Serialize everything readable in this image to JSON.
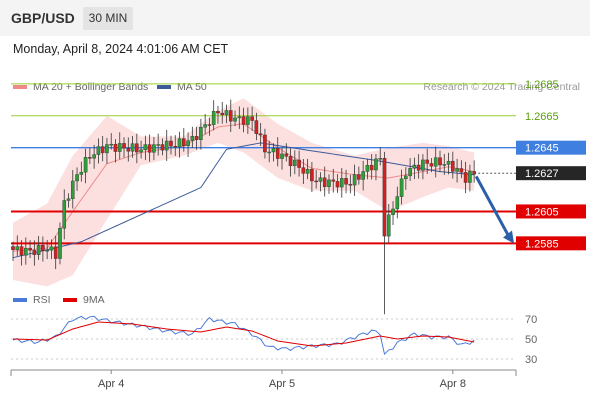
{
  "header": {
    "symbol": "GBP/USD",
    "timeframe": "30 MIN"
  },
  "datetime": "Monday, April 8, 2024 4:01:06 AM CET",
  "legend": {
    "bb_label": "MA 20 + Bollinger Bands",
    "ma50_label": "MA 50",
    "rsi_label": "RSI",
    "rsi_ma_label": "9MA"
  },
  "credit": "Research © 2024 Trading Central",
  "colors": {
    "bb": "#f08a8a",
    "bb_fill": "#fbdada",
    "ma50": "#3b5b9a",
    "resistance": "#9acd32",
    "support": "#e00000",
    "pivot": "#3f7fe0",
    "last": "#262626",
    "arrow": "#2d5fa8",
    "rsi": "#4a7ad8",
    "rsi_ma": "#e00000"
  },
  "chart_data": [
    {
      "type": "candlestick",
      "title": "GBP/USD",
      "xlabel": "",
      "ylabel": "",
      "x_ticks": [
        "Apr 4",
        "Apr 5",
        "Apr 8"
      ],
      "ylim": [
        1.2562,
        1.27
      ],
      "last_price": "1.2627",
      "levels": [
        {
          "value": 1.2685,
          "label": "1.2685",
          "kind": "resistance"
        },
        {
          "value": 1.2665,
          "label": "1.2665",
          "kind": "resistance"
        },
        {
          "value": 1.2645,
          "label": "1.2645",
          "kind": "pivot"
        },
        {
          "value": 1.2605,
          "label": "1.2605",
          "kind": "support"
        },
        {
          "value": 1.2585,
          "label": "1.2585",
          "kind": "support"
        }
      ],
      "forecast": {
        "direction": "down",
        "from": 1.2627,
        "to": 1.2588
      },
      "close_anchors": [
        [
          0,
          1.2581
        ],
        [
          4,
          1.258
        ],
        [
          8,
          1.2582
        ],
        [
          10,
          1.2578
        ],
        [
          12,
          1.261
        ],
        [
          15,
          1.2628
        ],
        [
          18,
          1.264
        ],
        [
          22,
          1.2646
        ],
        [
          26,
          1.2645
        ],
        [
          30,
          1.2644
        ],
        [
          34,
          1.2646
        ],
        [
          38,
          1.2647
        ],
        [
          42,
          1.265
        ],
        [
          46,
          1.2662
        ],
        [
          48,
          1.2668
        ],
        [
          52,
          1.2663
        ],
        [
          56,
          1.2662
        ],
        [
          59,
          1.2644
        ],
        [
          63,
          1.264
        ],
        [
          67,
          1.2633
        ],
        [
          71,
          1.2624
        ],
        [
          75,
          1.2623
        ],
        [
          79,
          1.2623
        ],
        [
          83,
          1.2632
        ],
        [
          86,
          1.2638
        ],
        [
          87,
          1.2592
        ],
        [
          89,
          1.2608
        ],
        [
          92,
          1.263
        ],
        [
          96,
          1.2635
        ],
        [
          100,
          1.2636
        ],
        [
          103,
          1.2633
        ],
        [
          106,
          1.2626
        ],
        [
          108,
          1.2629
        ]
      ],
      "ma50_anchors": [
        [
          0,
          1.2576
        ],
        [
          16,
          1.2586
        ],
        [
          30,
          1.2603
        ],
        [
          44,
          1.262
        ],
        [
          50,
          1.2644
        ],
        [
          58,
          1.2648
        ],
        [
          70,
          1.2643
        ],
        [
          85,
          1.2637
        ],
        [
          100,
          1.263
        ],
        [
          108,
          1.2628
        ]
      ],
      "bb_anchors": [
        [
          0,
          1.2598,
          1.258,
          1.2562
        ],
        [
          8,
          1.261,
          1.2582,
          1.2558
        ],
        [
          14,
          1.264,
          1.2605,
          1.2565
        ],
        [
          22,
          1.2665,
          1.2635,
          1.26
        ],
        [
          30,
          1.2652,
          1.2642,
          1.2634
        ],
        [
          40,
          1.2652,
          1.2646,
          1.264
        ],
        [
          48,
          1.2668,
          1.2658,
          1.2648
        ],
        [
          54,
          1.2676,
          1.266,
          1.2642
        ],
        [
          62,
          1.266,
          1.2645,
          1.2626
        ],
        [
          70,
          1.2648,
          1.2632,
          1.2618
        ],
        [
          80,
          1.264,
          1.2628,
          1.2618
        ],
        [
          88,
          1.2645,
          1.2626,
          1.2605
        ],
        [
          96,
          1.2648,
          1.263,
          1.2614
        ],
        [
          102,
          1.2646,
          1.2633,
          1.262
        ],
        [
          108,
          1.2642,
          1.263,
          1.2618
        ]
      ]
    },
    {
      "type": "line",
      "title": "RSI",
      "ylim": [
        20,
        80
      ],
      "y_ticks": [
        70,
        50,
        30
      ],
      "rsi_anchors": [
        [
          0,
          49
        ],
        [
          6,
          47
        ],
        [
          10,
          52
        ],
        [
          14,
          70
        ],
        [
          18,
          72
        ],
        [
          24,
          67
        ],
        [
          30,
          63
        ],
        [
          36,
          58
        ],
        [
          42,
          55
        ],
        [
          46,
          70
        ],
        [
          52,
          65
        ],
        [
          56,
          55
        ],
        [
          60,
          42
        ],
        [
          64,
          40
        ],
        [
          70,
          43
        ],
        [
          76,
          45
        ],
        [
          80,
          52
        ],
        [
          84,
          58
        ],
        [
          86,
          56
        ],
        [
          87,
          34
        ],
        [
          90,
          46
        ],
        [
          94,
          55
        ],
        [
          98,
          52
        ],
        [
          102,
          52
        ],
        [
          105,
          44
        ],
        [
          108,
          48
        ]
      ],
      "rsi_ma_anchors": [
        [
          0,
          50
        ],
        [
          8,
          49
        ],
        [
          14,
          60
        ],
        [
          20,
          67
        ],
        [
          28,
          65
        ],
        [
          36,
          60
        ],
        [
          44,
          57
        ],
        [
          50,
          62
        ],
        [
          56,
          58
        ],
        [
          62,
          48
        ],
        [
          70,
          43
        ],
        [
          78,
          46
        ],
        [
          86,
          53
        ],
        [
          90,
          50
        ],
        [
          96,
          53
        ],
        [
          102,
          52
        ],
        [
          108,
          47
        ]
      ]
    }
  ]
}
